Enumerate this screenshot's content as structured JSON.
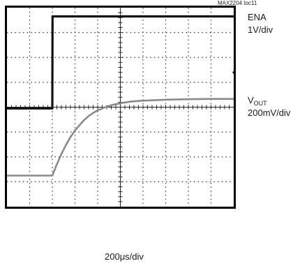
{
  "figure_id": "MAX2204 toc11",
  "chart_data": {
    "type": "line",
    "grid": "on",
    "time_scale": "200μs/div",
    "divisions": {
      "x": 10,
      "y": 8
    },
    "xlim": [
      0,
      10
    ],
    "ylim": [
      0,
      8
    ],
    "x_unit": "div",
    "series": [
      {
        "name": "ENA",
        "scale": "1V/div",
        "color": "#111111",
        "x": [
          0,
          2.0,
          2.01,
          10
        ],
        "y": [
          3.95,
          3.95,
          7.65,
          7.65
        ]
      },
      {
        "name": "VOUT",
        "name_main": "V",
        "name_sub": "OUT",
        "scale": "200mV/div",
        "color": "#8a8a8a",
        "x": [
          0,
          2.0,
          2.2,
          2.4,
          2.6,
          2.8,
          3.0,
          3.2,
          3.4,
          3.6,
          3.8,
          4.0,
          4.3,
          4.6,
          5.0,
          5.5,
          6.0,
          7.0,
          8.0,
          9.0,
          10.0
        ],
        "y": [
          1.25,
          1.25,
          1.7,
          2.12,
          2.48,
          2.8,
          3.06,
          3.28,
          3.48,
          3.64,
          3.77,
          3.87,
          3.99,
          4.08,
          4.16,
          4.23,
          4.26,
          4.3,
          4.32,
          4.33,
          4.33
        ]
      }
    ]
  },
  "colors": {
    "grid": "#333333",
    "frame": "#000000"
  }
}
